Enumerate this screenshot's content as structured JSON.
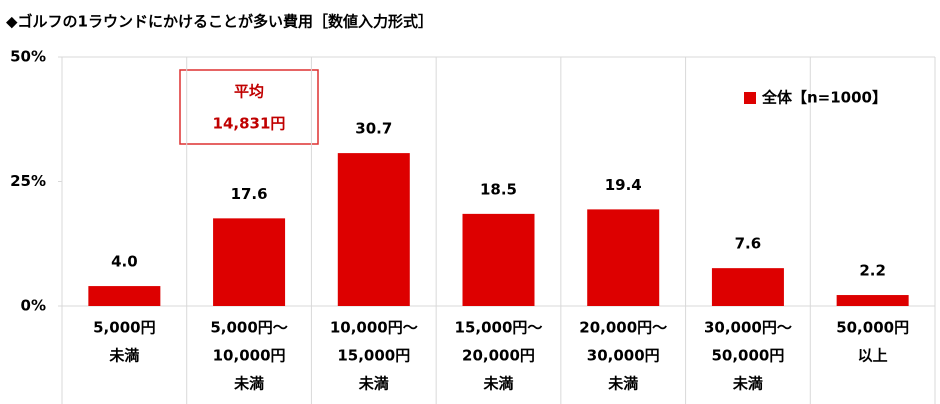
{
  "chart_data": {
    "type": "bar",
    "title": "◆ゴルフの1ラウンドにかけることが多い費用［数値入力形式］",
    "categories": [
      [
        "5,000円",
        "未満"
      ],
      [
        "5,000円～",
        "10,000円",
        "未満"
      ],
      [
        "10,000円～",
        "15,000円",
        "未満"
      ],
      [
        "15,000円～",
        "20,000円",
        "未満"
      ],
      [
        "20,000円～",
        "30,000円",
        "未満"
      ],
      [
        "30,000円～",
        "50,000円",
        "未満"
      ],
      [
        "50,000円",
        "以上"
      ]
    ],
    "series": [
      {
        "name": "全体【n=1000】",
        "color": "#dd0000",
        "values": [
          4.0,
          17.6,
          30.7,
          18.5,
          19.4,
          7.6,
          2.2
        ],
        "value_labels": [
          "4.0",
          "17.6",
          "30.7",
          "18.5",
          "19.4",
          "7.6",
          "2.2"
        ]
      }
    ],
    "ylim": [
      0,
      50
    ],
    "yticks": [
      {
        "value": 0,
        "label": "0%"
      },
      {
        "value": 25,
        "label": "25%"
      },
      {
        "value": 50,
        "label": "50%"
      }
    ],
    "annotation": [
      "平均",
      "14,831円"
    ],
    "legend": "upper-right"
  }
}
